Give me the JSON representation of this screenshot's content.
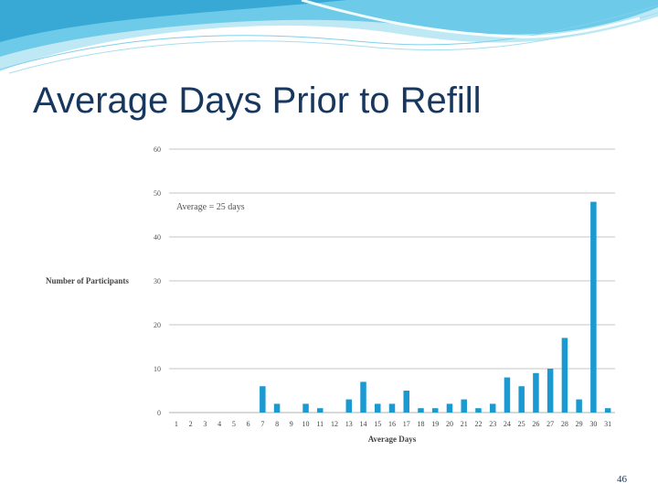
{
  "slide": {
    "title": "Average Days Prior to Refill",
    "page_number": "46"
  },
  "colors": {
    "bar": "#1a9ad1",
    "title": "#17375e",
    "grid": "#b0b0b0",
    "wave_light": "#bde8f4",
    "wave_mid": "#5fc4e6",
    "wave_dark": "#2aa0cf"
  },
  "chart_data": {
    "type": "bar",
    "title": "",
    "xlabel": "Average Days",
    "ylabel": "Number of Participants",
    "ylim": [
      0,
      60
    ],
    "yticks": [
      0,
      10,
      20,
      30,
      40,
      50,
      60
    ],
    "grid": true,
    "annotation": "Average = 25 days",
    "categories": [
      "1",
      "2",
      "3",
      "4",
      "5",
      "6",
      "7",
      "8",
      "9",
      "10",
      "11",
      "12",
      "13",
      "14",
      "15",
      "16",
      "17",
      "18",
      "19",
      "20",
      "21",
      "22",
      "23",
      "24",
      "25",
      "26",
      "27",
      "28",
      "29",
      "30",
      "31"
    ],
    "values": [
      0,
      0,
      0,
      0,
      0,
      0,
      6,
      2,
      0,
      2,
      1,
      0,
      3,
      7,
      2,
      2,
      5,
      1,
      1,
      2,
      3,
      1,
      2,
      8,
      6,
      9,
      10,
      17,
      3,
      48,
      1
    ]
  }
}
